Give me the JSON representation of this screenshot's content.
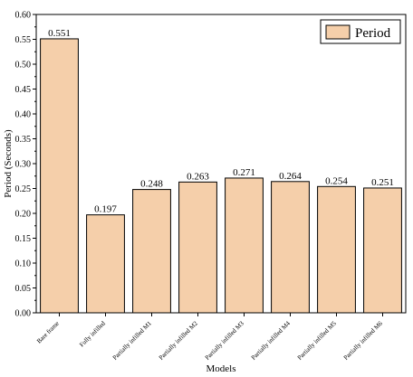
{
  "chart_data": {
    "type": "bar",
    "title": "",
    "xlabel": "Models",
    "ylabel": "Period (Seconds)",
    "ylim": [
      0,
      0.6
    ],
    "yticks": [
      "0.00",
      "0.05",
      "0.10",
      "0.15",
      "0.20",
      "0.25",
      "0.30",
      "0.35",
      "0.40",
      "0.45",
      "0.50",
      "0.55",
      "0.60"
    ],
    "categories": [
      "Bare frame",
      "Fully infilled",
      "Partially infilled M1",
      "Partially infilled M2",
      "Partially infilled M3",
      "Partially infilled M4",
      "Partially infilled M5",
      "Partially infilled M6"
    ],
    "series": [
      {
        "name": "Period",
        "values": [
          0.551,
          0.197,
          0.248,
          0.263,
          0.271,
          0.264,
          0.254,
          0.251
        ],
        "labels": [
          "0.551",
          "0.197",
          "0.248",
          "0.263",
          "0.271",
          "0.264",
          "0.254",
          "0.251"
        ]
      }
    ],
    "bar_color": "#f5cfaa",
    "legend_position": "top-right",
    "grid": false
  }
}
